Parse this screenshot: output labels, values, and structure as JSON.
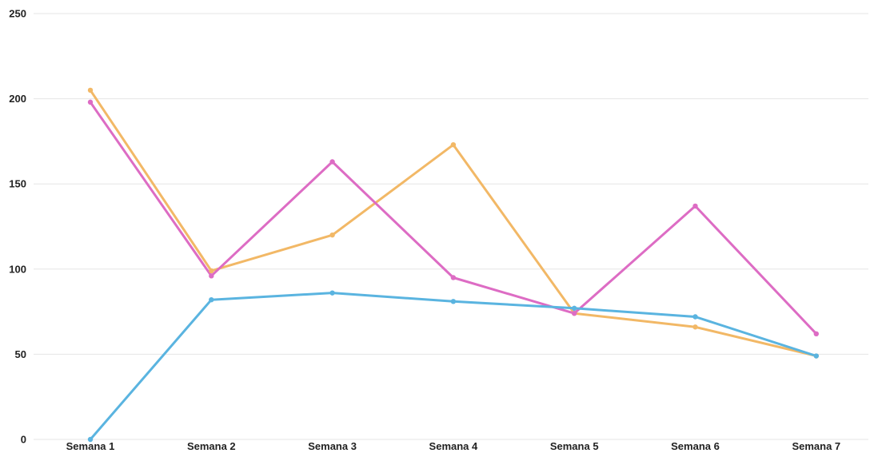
{
  "chart_data": {
    "type": "line",
    "categories": [
      "Semana 1",
      "Semana 2",
      "Semana 3",
      "Semana 4",
      "Semana 5",
      "Semana 6",
      "Semana 7"
    ],
    "ylim": [
      0,
      250
    ],
    "y_ticks": [
      0,
      50,
      100,
      150,
      200,
      250
    ],
    "grid": true,
    "legend": "none",
    "series": [
      {
        "color": "#f2b866",
        "values": [
          205,
          99,
          120,
          173,
          74,
          66,
          49
        ]
      },
      {
        "color": "#dd6cc4",
        "values": [
          198,
          96,
          163,
          95,
          74,
          137,
          62
        ]
      },
      {
        "color": "#5ab4e0",
        "values": [
          0,
          82,
          86,
          81,
          77,
          72,
          49
        ]
      }
    ]
  }
}
